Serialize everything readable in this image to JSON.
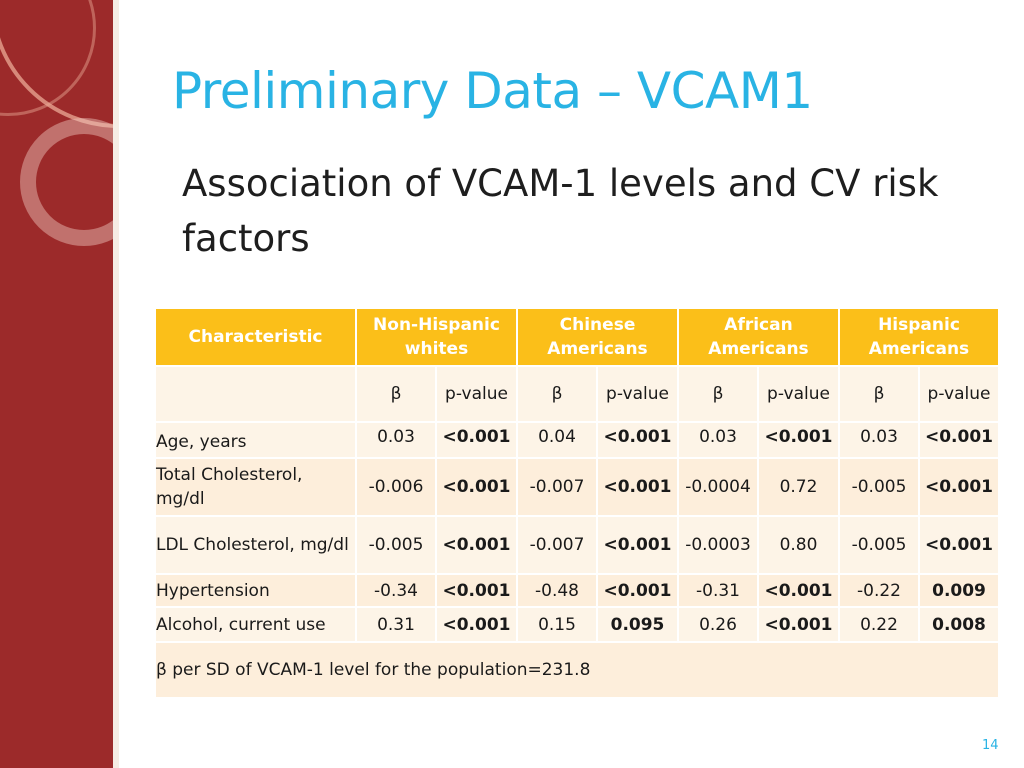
{
  "slide": {
    "title": "Preliminary Data – VCAM1",
    "subtitle": "Association of VCAM-1 levels and CV risk factors",
    "page_number": "14"
  },
  "table": {
    "headers": [
      "Characteristic",
      "Non-Hispanic whites",
      "Chinese Americans",
      "African Americans",
      "Hispanic Americans"
    ],
    "subheaders": [
      "β",
      "p-value",
      "β",
      "p-value",
      "β",
      "p-value",
      "β",
      "p-value"
    ],
    "rows": [
      {
        "label": "Age, years",
        "cells": [
          "0.03",
          "<0.001",
          "0.04",
          "<0.001",
          "0.03",
          "<0.001",
          "0.03",
          "<0.001"
        ]
      },
      {
        "label": "Total Cholesterol, mg/dl",
        "cells": [
          "-0.006",
          "<0.001",
          "-0.007",
          "<0.001",
          "-0.0004",
          "0.72",
          "-0.005",
          "<0.001"
        ]
      },
      {
        "label": "LDL Cholesterol, mg/dl",
        "cells": [
          "-0.005",
          "<0.001",
          "-0.007",
          "<0.001",
          "-0.0003",
          "0.80",
          "-0.005",
          "<0.001"
        ]
      },
      {
        "label": "Hypertension",
        "cells": [
          "-0.34",
          "<0.001",
          "-0.48",
          "<0.001",
          "-0.31",
          "<0.001",
          "-0.22",
          "0.009"
        ]
      },
      {
        "label": "Alcohol, current use",
        "cells": [
          "0.31",
          "<0.001",
          "0.15",
          "0.095",
          "0.26",
          "<0.001",
          "0.22",
          "0.008"
        ]
      }
    ],
    "footnote": "β per SD of VCAM-1 level for the population=231.8"
  },
  "colors": {
    "sidebar": "#9c2a2a",
    "title": "#29b3e4",
    "header_fill": "#fbbf19",
    "row_fill_a": "#fdeedb",
    "row_fill_b": "#fdf4e7"
  }
}
